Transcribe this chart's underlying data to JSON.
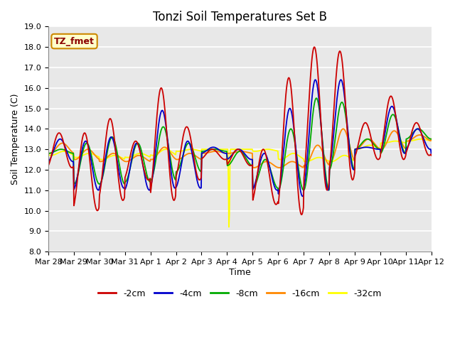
{
  "title": "Tonzi Soil Temperatures Set B",
  "xlabel": "Time",
  "ylabel": "Soil Temperature (C)",
  "ylim": [
    8.0,
    19.0
  ],
  "yticks": [
    8.0,
    9.0,
    10.0,
    11.0,
    12.0,
    13.0,
    14.0,
    15.0,
    16.0,
    17.0,
    18.0,
    19.0
  ],
  "xtick_labels": [
    "Mar 28",
    "Mar 29",
    "Mar 30",
    "Mar 31",
    "Apr 1",
    "Apr 2",
    "Apr 3",
    "Apr 4",
    "Apr 5",
    "Apr 6",
    "Apr 7",
    "Apr 8",
    "Apr 9",
    "Apr 10",
    "Apr 11",
    "Apr 12"
  ],
  "series_colors": [
    "#cc0000",
    "#0000cc",
    "#00aa00",
    "#ff8800",
    "#ffff00"
  ],
  "series_labels": [
    "-2cm",
    "-4cm",
    "-8cm",
    "-16cm",
    "-32cm"
  ],
  "background_color": "#ffffff",
  "plot_bg_color": "#e8e8e8",
  "grid_color": "#ffffff",
  "annotation_text": "TZ_fmet",
  "annotation_bg": "#ffffcc",
  "annotation_border": "#cc8800",
  "title_fontsize": 12,
  "axis_label_fontsize": 9,
  "tick_fontsize": 8
}
